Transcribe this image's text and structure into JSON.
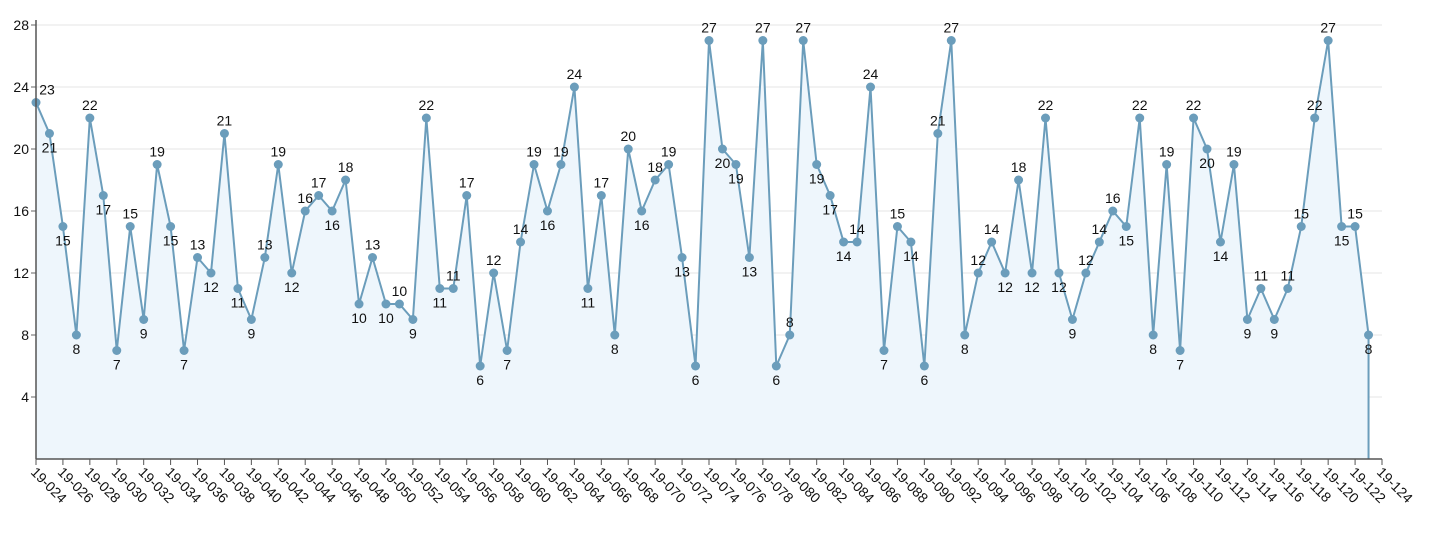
{
  "chart_data": {
    "type": "line",
    "categories": [
      "19-024",
      null,
      "19-026",
      null,
      "19-028",
      null,
      "19-030",
      null,
      "19-032",
      null,
      "19-034",
      null,
      "19-036",
      null,
      "19-038",
      null,
      "19-040",
      null,
      "19-042",
      null,
      "19-044",
      null,
      "19-046",
      null,
      "19-048",
      null,
      "19-050",
      null,
      "19-052",
      null,
      "19-054",
      null,
      "19-056",
      null,
      "19-058",
      null,
      "19-060",
      null,
      "19-062",
      null,
      "19-064",
      null,
      "19-066",
      null,
      "19-068",
      null,
      "19-070",
      null,
      "19-072",
      null,
      "19-074",
      null,
      "19-076",
      null,
      "19-078",
      null,
      "19-080",
      null,
      "19-082",
      null,
      "19-084",
      null,
      "19-086",
      null,
      "19-088",
      null,
      "19-090",
      null,
      "19-092",
      null,
      "19-094",
      null,
      "19-096",
      null,
      "19-098",
      null,
      "19-100",
      null,
      "19-102",
      null,
      "19-104",
      null,
      "19-106",
      null,
      "19-108",
      null,
      "19-110",
      null,
      "19-112",
      null,
      "19-114",
      null,
      "19-116",
      null,
      "19-118",
      null,
      "19-120",
      null,
      "19-122",
      null,
      "19-124"
    ],
    "values": [
      23,
      21,
      15,
      8,
      22,
      17,
      7,
      15,
      9,
      19,
      15,
      7,
      13,
      12,
      21,
      11,
      9,
      13,
      19,
      12,
      16,
      17,
      16,
      18,
      10,
      13,
      10,
      10,
      9,
      22,
      11,
      11,
      17,
      6,
      12,
      7,
      14,
      19,
      16,
      19,
      24,
      11,
      17,
      8,
      20,
      16,
      18,
      19,
      13,
      6,
      27,
      20,
      19,
      13,
      27,
      6,
      8,
      27,
      19,
      17,
      14,
      14,
      24,
      7,
      15,
      14,
      6,
      21,
      27,
      8,
      12,
      14,
      12,
      18,
      12,
      22,
      12,
      9,
      12,
      14,
      16,
      15,
      22,
      8,
      19,
      7,
      22,
      20,
      14,
      19,
      9,
      11,
      9,
      11,
      15,
      22,
      27,
      15,
      15,
      8,
      null
    ],
    "color": "#6b9dbb",
    "fill": "#eef6fc",
    "ylim": [
      0,
      28
    ],
    "yticks": [
      4,
      8,
      12,
      16,
      20,
      24,
      28
    ],
    "grid": true,
    "data_labels": true
  }
}
